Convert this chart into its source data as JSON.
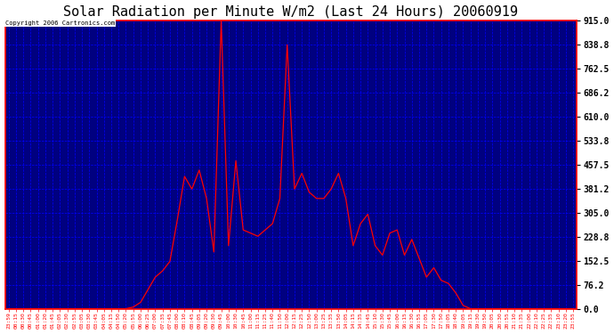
{
  "title": "Solar Radiation per Minute W/m2 (Last 24 Hours) 20060919",
  "copyright": "Copyright 2006 Cartronics.com",
  "bg_color": "#000080",
  "line_color": "#ff0000",
  "grid_color": "#0000ff",
  "ytick_color": "#000000",
  "xtick_color": "#ff0000",
  "border_color": "#ff0000",
  "outer_bg": "#ffffff",
  "yticks": [
    0.0,
    76.2,
    152.5,
    228.8,
    305.0,
    381.2,
    457.5,
    533.8,
    610.0,
    686.2,
    762.5,
    838.8,
    915.0
  ],
  "xtick_labels": [
    "23:59",
    "00:15",
    "00:30",
    "00:45",
    "01:00",
    "01:20",
    "01:45",
    "02:05",
    "02:30",
    "02:55",
    "03:05",
    "03:30",
    "03:45",
    "04:05",
    "04:15",
    "04:50",
    "05:20",
    "05:55",
    "06:00",
    "06:25",
    "07:00",
    "07:35",
    "07:45",
    "08:00",
    "08:10",
    "08:45",
    "09:05",
    "09:20",
    "09:30",
    "09:45",
    "10:00",
    "10:30",
    "10:45",
    "11:00",
    "11:15",
    "11:25",
    "11:40",
    "11:50",
    "12:00",
    "12:15",
    "12:25",
    "12:50",
    "13:00",
    "13:25",
    "13:35",
    "13:50",
    "14:05",
    "14:15",
    "14:35",
    "14:45",
    "15:10",
    "15:30",
    "15:45",
    "16:00",
    "16:15",
    "16:30",
    "16:55",
    "17:05",
    "17:30",
    "17:50",
    "18:05",
    "18:40",
    "19:05",
    "19:15",
    "19:30",
    "19:50",
    "20:05",
    "20:30",
    "20:55",
    "21:10",
    "21:35",
    "22:00",
    "22:10",
    "22:25",
    "22:35",
    "23:10",
    "23:20",
    "23:55"
  ],
  "ylim": [
    0.0,
    915.0
  ],
  "title_fontsize": 11,
  "figsize": [
    6.9,
    3.75
  ],
  "dpi": 100
}
